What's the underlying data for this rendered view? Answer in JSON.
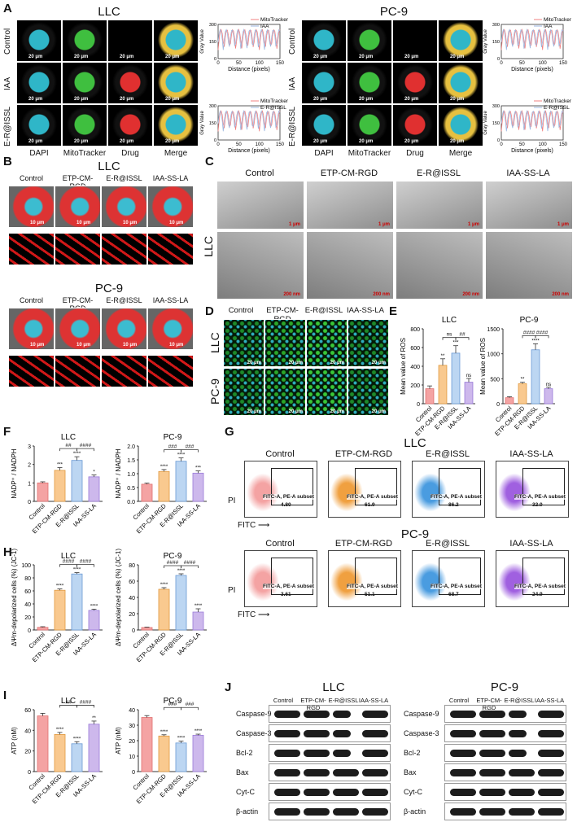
{
  "panels": {
    "A": {
      "label": "A",
      "llc_title": "LLC",
      "pc9_title": "PC-9",
      "rows": [
        "Control",
        "IAA",
        "E-R@ISSL"
      ],
      "cols": [
        "DAPI",
        "MitoTracker",
        "Drug",
        "Merge"
      ],
      "scale": "20 μm",
      "plot": {
        "ylabel": "Gray Value",
        "xlabel": "Distance (pixels)",
        "legend_top": [
          "MitoTracker",
          "IAA"
        ],
        "legend_bottom": [
          "MitoTracker",
          "E-R@ISSL"
        ],
        "yticks": [
          "0",
          "50",
          "100",
          "150",
          "200",
          "250",
          "300"
        ],
        "xticks": [
          "0",
          "50",
          "100",
          "150"
        ],
        "xticks_pc9": [
          "0",
          "50",
          "100",
          "150"
        ]
      }
    },
    "B": {
      "label": "B",
      "llc_title": "LLC",
      "pc9_title": "PC-9",
      "cols": [
        "Control",
        "ETP-CM-RGD",
        "E-R@ISSL",
        "IAA-SS-LA"
      ],
      "scale": "10 μm"
    },
    "C": {
      "label": "C",
      "row": "LLC",
      "cols": [
        "Control",
        "ETP-CM-RGD",
        "E-R@ISSL",
        "IAA-SS-LA"
      ],
      "scale_top": "1 μm",
      "scale_bottom": "200 nm"
    },
    "D": {
      "label": "D",
      "rows": [
        "LLC",
        "PC-9"
      ],
      "cols": [
        "Control",
        "ETP-CM-RGD",
        "E-R@ISSL",
        "IAA-SS-LA"
      ],
      "scale": "20 μm"
    },
    "E": {
      "label": "E"
    },
    "F": {
      "label": "F"
    },
    "G": {
      "label": "G",
      "llc_title": "LLC",
      "pc9_title": "PC-9",
      "cols": [
        "Control",
        "ETP-CM-RGD",
        "E-R@ISSL",
        "IAA-SS-LA"
      ],
      "gate": "FITC-A, PE-A subset",
      "llc_values": [
        "4.80",
        "61.9",
        "86.2",
        "32.0"
      ],
      "pc9_values": [
        "3.61",
        "51.1",
        "68.7",
        "24.9"
      ],
      "xaxis": "FITC",
      "yaxis": "PI"
    },
    "H": {
      "label": "H"
    },
    "I": {
      "label": "I"
    },
    "J": {
      "label": "J",
      "llc_title": "LLC",
      "pc9_title": "PC-9",
      "cols": [
        "Control",
        "ETP-CM-RGD",
        "E-R@ISSL",
        "IAA-SS-LA"
      ],
      "llc_rows": [
        "Caspase-9",
        "Caspase-3",
        "Bcl-2",
        "Bax",
        "Cyt-C",
        "β-actin"
      ],
      "pc9_rows": [
        "Caspase-9",
        "Caspase-3",
        "Bcl-2",
        "Bax",
        "Cyt-C",
        "β-actin"
      ]
    }
  },
  "colors": {
    "control": "#f4a3a3",
    "etp": "#f9c98f",
    "er": "#bcd6f2",
    "iaa": "#cdb8ec",
    "mito_line": "#f08080",
    "drug_line": "#9db7e0"
  },
  "chart_data": [
    {
      "type": "bar",
      "id": "E-LLC",
      "title": "LLC",
      "ylabel": "Mean value of ROS",
      "categories": [
        "Control",
        "ETP-CM-RGD",
        "E-R@ISSL",
        "IAA-SS-LA"
      ],
      "values": [
        160,
        410,
        540,
        230
      ],
      "errors": [
        30,
        70,
        80,
        40
      ],
      "ylim": [
        0,
        800
      ],
      "yticks": [
        "0",
        "200",
        "400",
        "600",
        "800"
      ],
      "stars": [
        "",
        "**",
        "***",
        "ns"
      ],
      "brackets": [
        {
          "from": 1,
          "to": 2,
          "label": "ns"
        },
        {
          "from": 2,
          "to": 3,
          "label": "##"
        }
      ]
    },
    {
      "type": "bar",
      "id": "E-PC9",
      "title": "PC-9",
      "ylabel": "Mean value of ROS",
      "categories": [
        "Control",
        "ETP-CM-RGD",
        "E-R@ISSL",
        "IAA-SS-LA"
      ],
      "values": [
        120,
        400,
        1080,
        300
      ],
      "errors": [
        20,
        30,
        120,
        30
      ],
      "ylim": [
        0,
        1500
      ],
      "yticks": [
        "0",
        "500",
        "1000",
        "1500"
      ],
      "stars": [
        "",
        "**",
        "****",
        "ns"
      ],
      "brackets": [
        {
          "from": 1,
          "to": 2,
          "label": "####"
        },
        {
          "from": 2,
          "to": 3,
          "label": "####"
        }
      ]
    },
    {
      "type": "bar",
      "id": "F-LLC",
      "title": "LLC",
      "ylabel": "NADP⁺ / NADPH",
      "categories": [
        "Control",
        "ETP-CM-RGD",
        "E-R@ISSL",
        "IAA-SS-LA"
      ],
      "values": [
        1.0,
        1.68,
        2.22,
        1.33
      ],
      "errors": [
        0.06,
        0.15,
        0.2,
        0.1
      ],
      "ylim": [
        0,
        3
      ],
      "yticks": [
        "0",
        "1",
        "2",
        "3"
      ],
      "stars": [
        "",
        "***",
        "****",
        "*"
      ],
      "brackets": [
        {
          "from": 1,
          "to": 2,
          "label": "##"
        },
        {
          "from": 2,
          "to": 3,
          "label": "####"
        }
      ]
    },
    {
      "type": "bar",
      "id": "F-PC9",
      "title": "PC-9",
      "ylabel": "NADP⁺ / NADPH",
      "categories": [
        "Control",
        "ETP-CM-RGD",
        "E-R@ISSL",
        "IAA-SS-LA"
      ],
      "values": [
        0.62,
        1.08,
        1.45,
        1.02
      ],
      "errors": [
        0.04,
        0.07,
        0.12,
        0.08
      ],
      "ylim": [
        0,
        2
      ],
      "yticks": [
        "0.0",
        "0.5",
        "1.0",
        "1.5",
        "2.0"
      ],
      "stars": [
        "",
        "****",
        "****",
        "***"
      ],
      "brackets": [
        {
          "from": 1,
          "to": 2,
          "label": "###"
        },
        {
          "from": 2,
          "to": 3,
          "label": "###"
        }
      ]
    },
    {
      "type": "bar",
      "id": "H-LLC",
      "title": "LLC",
      "ylabel": "ΔΨm-depolarized cells (%) (JC-1)",
      "categories": [
        "Control",
        "ETP-CM-RGD",
        "E-R@ISSL",
        "IAA-SS-LA"
      ],
      "values": [
        4,
        61,
        86,
        30
      ],
      "errors": [
        1,
        2,
        2,
        2
      ],
      "ylim": [
        0,
        100
      ],
      "yticks": [
        "0",
        "20",
        "40",
        "60",
        "80",
        "100"
      ],
      "stars": [
        "",
        "****",
        "****",
        "****"
      ],
      "brackets": [
        {
          "from": 1,
          "to": 2,
          "label": "####"
        },
        {
          "from": 2,
          "to": 3,
          "label": "####"
        }
      ]
    },
    {
      "type": "bar",
      "id": "H-PC9",
      "title": "PC-9",
      "ylabel": "ΔΨm-depolarized cells (%) (JC-1)",
      "categories": [
        "Control",
        "ETP-CM-RGD",
        "E-R@ISSL",
        "IAA-SS-LA"
      ],
      "values": [
        3,
        50,
        67,
        22
      ],
      "errors": [
        0.5,
        2,
        2,
        4
      ],
      "ylim": [
        0,
        80
      ],
      "yticks": [
        "0",
        "20",
        "40",
        "60",
        "80"
      ],
      "stars": [
        "",
        "****",
        "****",
        "****"
      ],
      "brackets": [
        {
          "from": 1,
          "to": 2,
          "label": "####"
        },
        {
          "from": 2,
          "to": 3,
          "label": "####"
        }
      ]
    },
    {
      "type": "bar",
      "id": "I-LLC",
      "title": "LLC",
      "ylabel": "ATP (nM)",
      "categories": [
        "Control",
        "ETP-CM-RGD",
        "E-R@ISSL",
        "IAA-SS-LA"
      ],
      "values": [
        54,
        36,
        27,
        46
      ],
      "errors": [
        2.5,
        2,
        2,
        3
      ],
      "ylim": [
        0,
        60
      ],
      "yticks": [
        "0",
        "20",
        "40",
        "60"
      ],
      "stars": [
        "",
        "****",
        "****",
        "**"
      ],
      "brackets": [
        {
          "from": 1,
          "to": 2,
          "label": "##"
        },
        {
          "from": 2,
          "to": 3,
          "label": "####"
        }
      ]
    },
    {
      "type": "bar",
      "id": "I-PC9",
      "title": "PC-9",
      "ylabel": "ATP (nM)",
      "categories": [
        "Control",
        "ETP-CM-RGD",
        "E-R@ISSL",
        "IAA-SS-LA"
      ],
      "values": [
        35,
        23,
        18.5,
        23.5
      ],
      "errors": [
        1.2,
        0.8,
        1.2,
        0.7
      ],
      "ylim": [
        0,
        40
      ],
      "yticks": [
        "0",
        "10",
        "20",
        "30",
        "40"
      ],
      "stars": [
        "",
        "****",
        "****",
        "****"
      ],
      "brackets": [
        {
          "from": 1,
          "to": 2,
          "label": "###"
        },
        {
          "from": 2,
          "to": 3,
          "label": "###"
        }
      ]
    }
  ]
}
